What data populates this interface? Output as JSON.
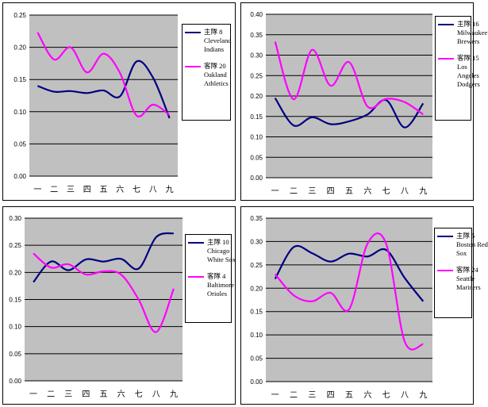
{
  "chart_data": [
    {
      "type": "line",
      "categories": [
        "一",
        "二",
        "三",
        "四",
        "五",
        "六",
        "七",
        "八",
        "九"
      ],
      "ylim": [
        0,
        0.25
      ],
      "yticks": [
        "0.00",
        "0.05",
        "0.10",
        "0.15",
        "0.20",
        "0.25"
      ],
      "grid": true,
      "legend": "right",
      "series": [
        {
          "name_lines": [
            "主隊 8",
            "Cleveland",
            "Indians"
          ],
          "color": "#000080",
          "values": [
            0.14,
            0.131,
            0.132,
            0.129,
            0.133,
            0.124,
            0.178,
            0.153,
            0.09
          ]
        },
        {
          "name_lines": [
            "客隊 20",
            "Oakland",
            "Athletics"
          ],
          "color": "#ff00ff",
          "values": [
            0.223,
            0.181,
            0.2,
            0.161,
            0.19,
            0.16,
            0.094,
            0.111,
            0.095
          ]
        }
      ]
    },
    {
      "type": "line",
      "categories": [
        "一",
        "二",
        "三",
        "四",
        "五",
        "六",
        "七",
        "八",
        "九"
      ],
      "ylim": [
        0,
        0.4
      ],
      "yticks": [
        "0.00",
        "0.05",
        "0.10",
        "0.15",
        "0.20",
        "0.25",
        "0.30",
        "0.35",
        "0.40"
      ],
      "grid": true,
      "legend": "right",
      "series": [
        {
          "name_lines": [
            "主隊 16",
            "Milwaukee",
            "Brewers"
          ],
          "color": "#000080",
          "values": [
            0.195,
            0.128,
            0.148,
            0.131,
            0.138,
            0.155,
            0.19,
            0.123,
            0.182
          ]
        },
        {
          "name_lines": [
            "客隊 15",
            "Los",
            "Angeles",
            "Dodgers"
          ],
          "color": "#ff00ff",
          "values": [
            0.333,
            0.192,
            0.313,
            0.225,
            0.283,
            0.174,
            0.193,
            0.185,
            0.155
          ]
        }
      ]
    },
    {
      "type": "line",
      "categories": [
        "一",
        "二",
        "三",
        "四",
        "五",
        "六",
        "七",
        "八",
        "九"
      ],
      "ylim": [
        0,
        0.3
      ],
      "yticks": [
        "0.00",
        "0.05",
        "0.10",
        "0.15",
        "0.20",
        "0.25",
        "0.30"
      ],
      "grid": true,
      "legend": "right",
      "series": [
        {
          "name_lines": [
            "主隊 10",
            "Chicago",
            "White Sox"
          ],
          "color": "#000080",
          "values": [
            0.182,
            0.22,
            0.204,
            0.224,
            0.22,
            0.225,
            0.207,
            0.265,
            0.272
          ]
        },
        {
          "name_lines": [
            "客隊 4",
            "Baltimore",
            "Orioles"
          ],
          "color": "#ff00ff",
          "values": [
            0.235,
            0.209,
            0.215,
            0.196,
            0.202,
            0.196,
            0.15,
            0.09,
            0.17
          ]
        }
      ]
    },
    {
      "type": "line",
      "categories": [
        "一",
        "二",
        "三",
        "四",
        "五",
        "六",
        "七",
        "八",
        "九"
      ],
      "ylim": [
        0,
        0.35
      ],
      "yticks": [
        "0.00",
        "0.05",
        "0.10",
        "0.15",
        "0.20",
        "0.25",
        "0.30",
        "0.35"
      ],
      "grid": true,
      "legend": "right",
      "series": [
        {
          "name_lines": [
            "主隊 5",
            "Boston Red",
            "Sox"
          ],
          "color": "#000080",
          "values": [
            0.22,
            0.288,
            0.275,
            0.257,
            0.274,
            0.268,
            0.282,
            0.222,
            0.172
          ]
        },
        {
          "name_lines": [
            "客隊 24",
            "Seattle",
            "Mariners"
          ],
          "color": "#ff00ff",
          "values": [
            0.23,
            0.185,
            0.172,
            0.19,
            0.155,
            0.296,
            0.295,
            0.086,
            0.08
          ]
        }
      ]
    }
  ]
}
